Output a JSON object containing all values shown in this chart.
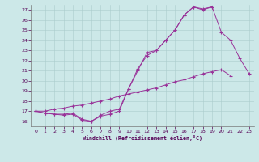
{
  "xlabel": "Windchill (Refroidissement éolien,°C)",
  "bg_color": "#cce8e8",
  "grid_color": "#aacccc",
  "line_color": "#993399",
  "xlim": [
    -0.5,
    23.5
  ],
  "ylim": [
    15.5,
    27.5
  ],
  "xticks": [
    0,
    1,
    2,
    3,
    4,
    5,
    6,
    7,
    8,
    9,
    10,
    11,
    12,
    13,
    14,
    15,
    16,
    17,
    18,
    19,
    20,
    21,
    22,
    23
  ],
  "yticks": [
    16,
    17,
    18,
    19,
    20,
    21,
    22,
    23,
    24,
    25,
    26,
    27
  ],
  "curve1_y": [
    17.0,
    16.8,
    16.7,
    16.7,
    16.8,
    16.2,
    16.0,
    16.5,
    16.7,
    17.0,
    19.2,
    21.2,
    22.5,
    23.0,
    24.0,
    25.0,
    26.5,
    27.3,
    27.0,
    27.3,
    null,
    null,
    null,
    null
  ],
  "curve2_y": [
    17.0,
    16.8,
    16.7,
    16.6,
    16.7,
    16.1,
    16.0,
    16.6,
    17.0,
    17.2,
    19.2,
    21.0,
    22.8,
    23.0,
    24.0,
    25.0,
    26.5,
    27.3,
    27.1,
    27.3,
    24.8,
    24.0,
    22.2,
    20.7
  ],
  "curve3_y": [
    17.0,
    17.0,
    17.2,
    17.3,
    17.5,
    17.6,
    17.8,
    18.0,
    18.2,
    18.5,
    18.7,
    18.9,
    19.1,
    19.3,
    19.6,
    19.9,
    20.1,
    20.4,
    20.7,
    20.9,
    21.1,
    20.5,
    null,
    null
  ]
}
